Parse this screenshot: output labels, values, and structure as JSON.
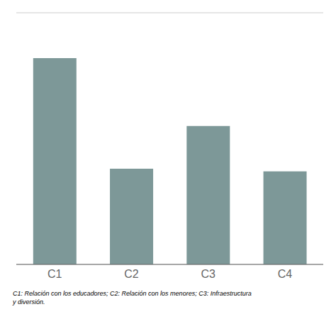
{
  "chart_data": {
    "type": "bar",
    "categories": [
      "C1",
      "C2",
      "C3",
      "C4"
    ],
    "values": [
      82,
      38,
      55,
      37
    ],
    "color": "#7d9898",
    "ylim": [
      0,
      100
    ],
    "yticks": [
      0,
      10,
      20,
      30,
      40,
      50,
      60,
      70,
      80,
      90,
      100
    ],
    "grid": true,
    "tick_labels": "x",
    "annotations": [
      "C1: Relación con los educadores; C2: Relación con los menores; C3: Infraestructura",
      "y diversión."
    ]
  }
}
